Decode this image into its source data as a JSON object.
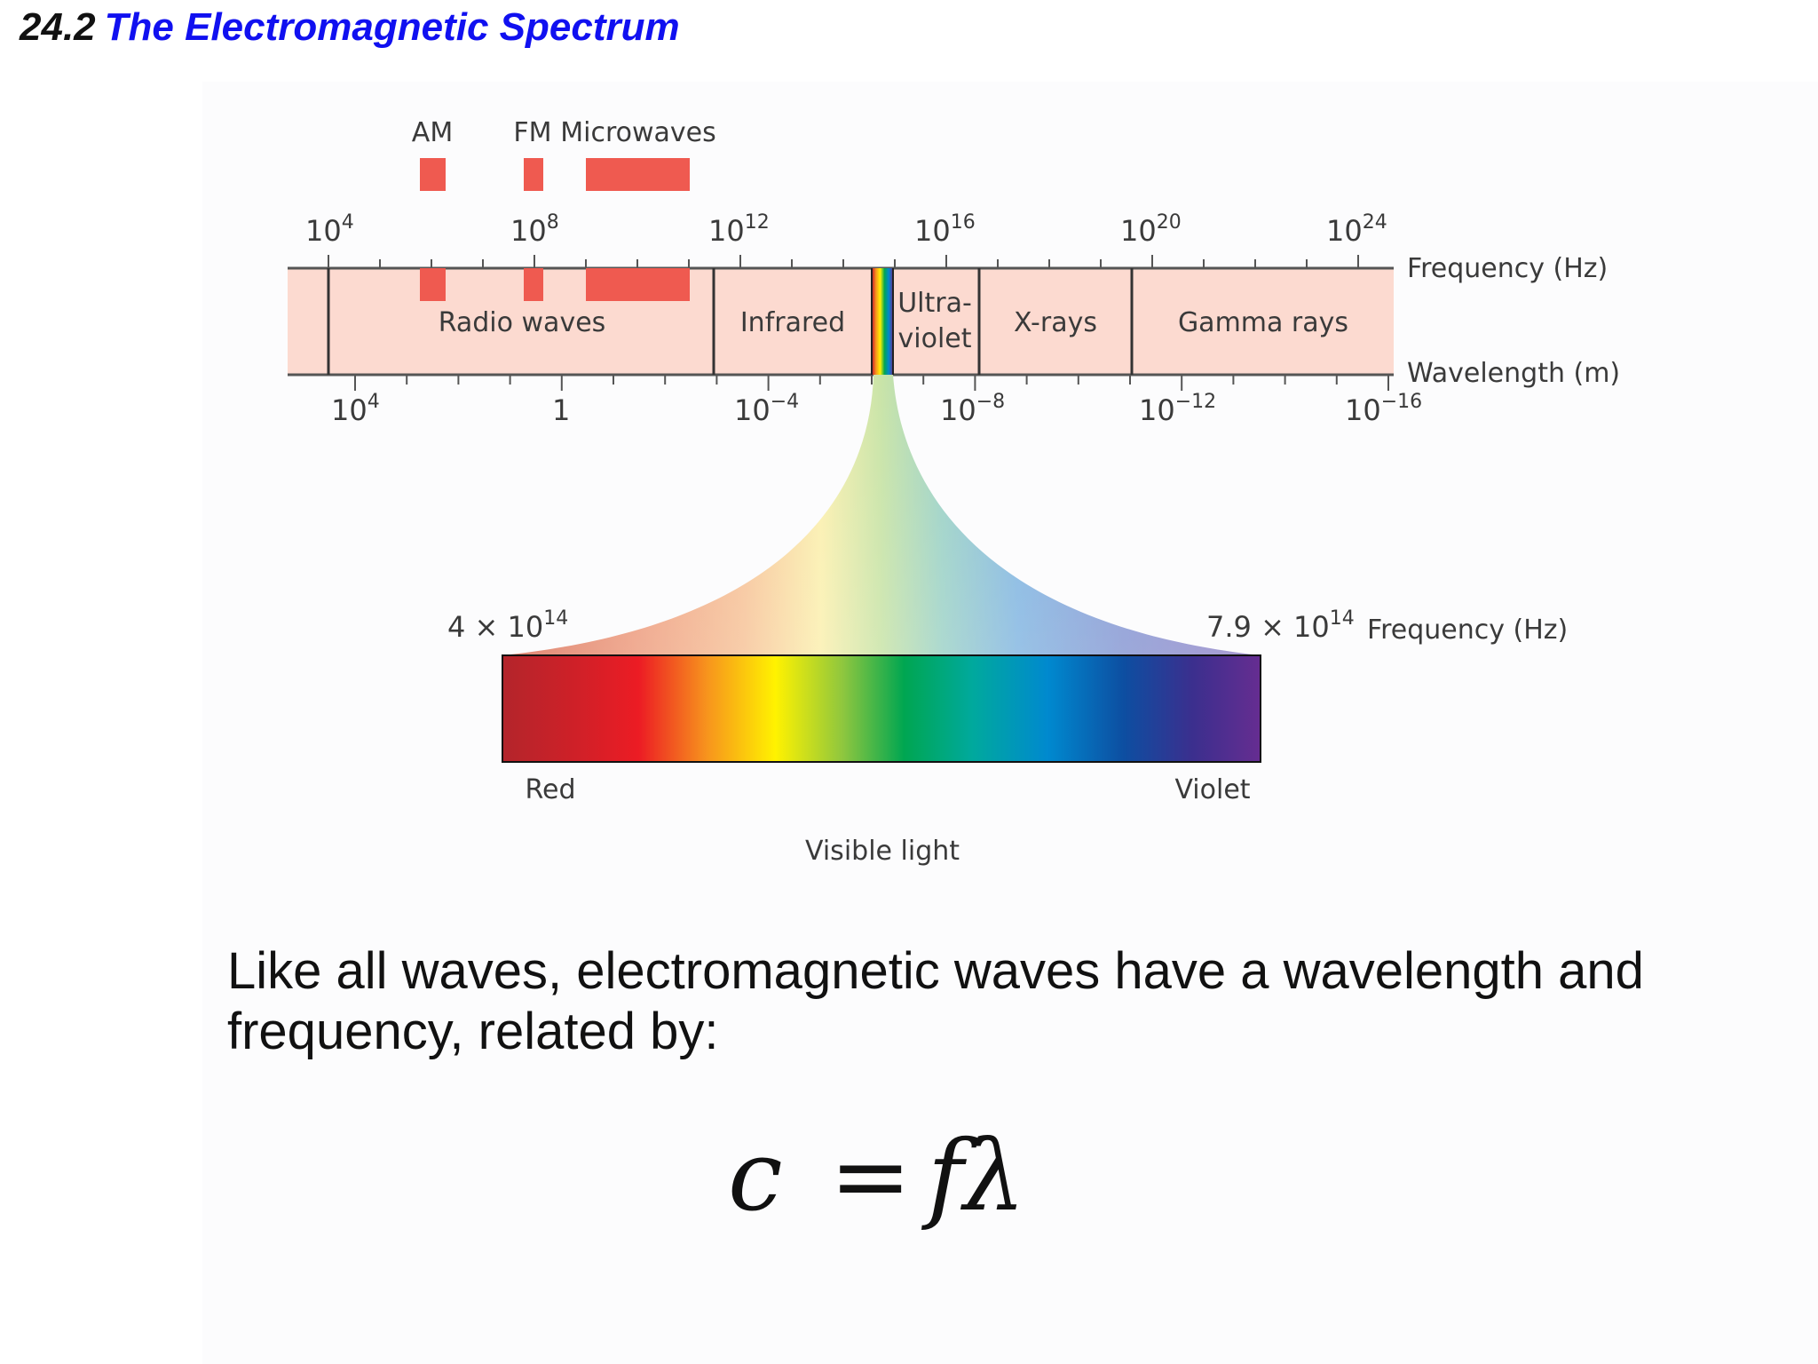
{
  "title": {
    "number": "24.2",
    "text": "The Electromagnetic Spectrum"
  },
  "diagram": {
    "bands_above": [
      {
        "label": "AM"
      },
      {
        "label": "FM"
      },
      {
        "label": "Microwaves"
      }
    ],
    "frequency_ticks": [
      {
        "base": "10",
        "exp": "4"
      },
      {
        "base": "10",
        "exp": "8"
      },
      {
        "base": "10",
        "exp": "12"
      },
      {
        "base": "10",
        "exp": "16"
      },
      {
        "base": "10",
        "exp": "20"
      },
      {
        "base": "10",
        "exp": "24"
      }
    ],
    "frequency_axis_label": "Frequency (Hz)",
    "wavelength_axis_label": "Wavelength (m)",
    "wavelength_ticks": [
      {
        "base": "10",
        "exp": "4"
      },
      {
        "base": "1",
        "exp": ""
      },
      {
        "base": "10",
        "exp": "−4"
      },
      {
        "base": "10",
        "exp": "−8"
      },
      {
        "base": "10",
        "exp": "−12"
      },
      {
        "base": "10",
        "exp": "−16"
      }
    ],
    "regions": {
      "radio": "Radio waves",
      "infrared": "Infrared",
      "uv_line1": "Ultra-",
      "uv_line2": "violet",
      "xrays": "X-rays",
      "gamma": "Gamma rays"
    },
    "visible": {
      "low_freq": {
        "prefix": "4 × ",
        "base": "10",
        "exp": "14"
      },
      "high_freq": {
        "prefix": "7.9 × ",
        "base": "10",
        "exp": "14"
      },
      "freq_label": "Frequency (Hz)",
      "left_label": "Red",
      "right_label": "Violet",
      "caption": "Visible light"
    },
    "colors": {
      "band_fill": "#fcdad0",
      "marker_red": "#ef5a50"
    }
  },
  "body": {
    "text": "Like all waves, electromagnetic waves have a wavelength and frequency, related by:"
  },
  "equation": {
    "c": "c",
    "eq": "=",
    "f": "f",
    "lambda": "λ"
  }
}
